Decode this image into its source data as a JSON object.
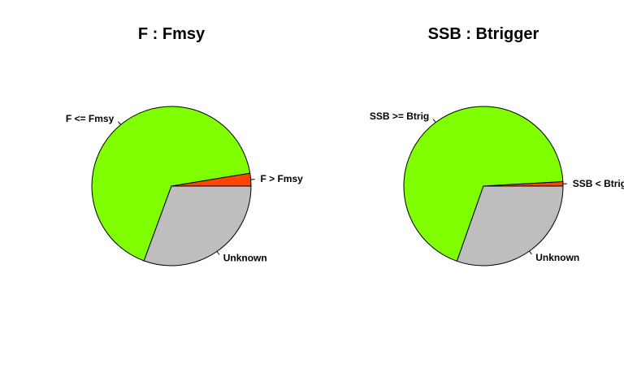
{
  "chart_data": [
    {
      "type": "pie",
      "title": "F : Fmsy",
      "slices": [
        {
          "label": "F > Fmsy",
          "value": 2.6,
          "color": "#FF4500"
        },
        {
          "label": "F <= Fmsy",
          "value": 66.8,
          "color": "#7FFF00"
        },
        {
          "label": "Unknown",
          "value": 30.6,
          "color": "#BEBEBE"
        }
      ]
    },
    {
      "type": "pie",
      "title": "SSB : Btrigger",
      "slices": [
        {
          "label": "SSB < Btrig",
          "value": 0.9,
          "color": "#FF4500"
        },
        {
          "label": "SSB >= Btrig",
          "value": 68.7,
          "color": "#7FFF00"
        },
        {
          "label": "Unknown",
          "value": 30.4,
          "color": "#BEBEBE"
        }
      ]
    }
  ]
}
